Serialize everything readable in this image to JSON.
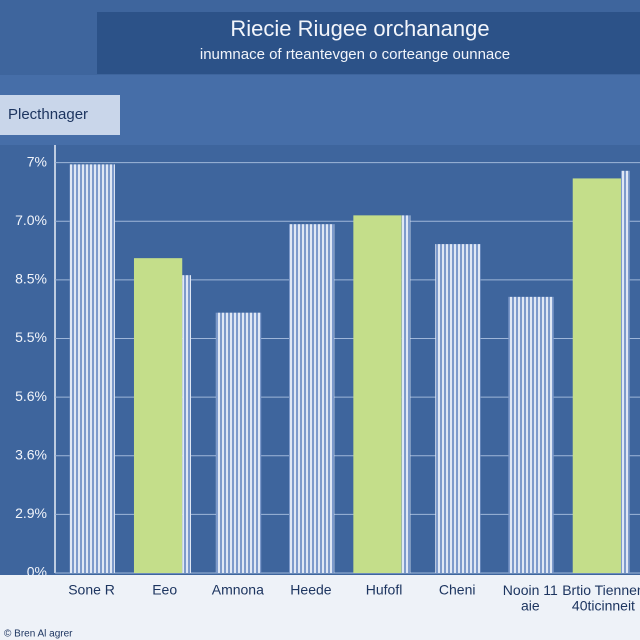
{
  "chart_data": {
    "type": "bar",
    "title": "Riecie Riugee orchanange",
    "subtitle": "inumnace of rteantevgen o corteange ounnace",
    "ylabel": "Plecthnager",
    "categories": [
      "Sone R",
      "Eeo",
      "Amnona",
      "Heede",
      "Hufofl",
      "Cheni",
      "Nooin 11\naie",
      "Brtio Tiennen\n40ticinneit"
    ],
    "series": [
      {
        "color": "#6f8fc4",
        "values": [
          6.97,
          5.08,
          4.44,
          5.95,
          6.1,
          5.61,
          4.71,
          6.86
        ]
      },
      {
        "color": "#c4de8a",
        "values": [
          null,
          5.37,
          null,
          null,
          6.1,
          null,
          null,
          6.73
        ]
      }
    ],
    "ylim": [
      0,
      7.3
    ],
    "yticks": [
      {
        "value": 0,
        "label": "0%"
      },
      {
        "value": 1,
        "label": "2.9%"
      },
      {
        "value": 2,
        "label": "3.6%"
      },
      {
        "value": 3,
        "label": "5.6%"
      },
      {
        "value": 4,
        "label": "5.5%"
      },
      {
        "value": 5,
        "label": "8.5%"
      },
      {
        "value": 6,
        "label": "7.0%"
      },
      {
        "value": 7,
        "label": "7%"
      }
    ],
    "grid": true,
    "footnote": "© Bren Al agrer"
  }
}
